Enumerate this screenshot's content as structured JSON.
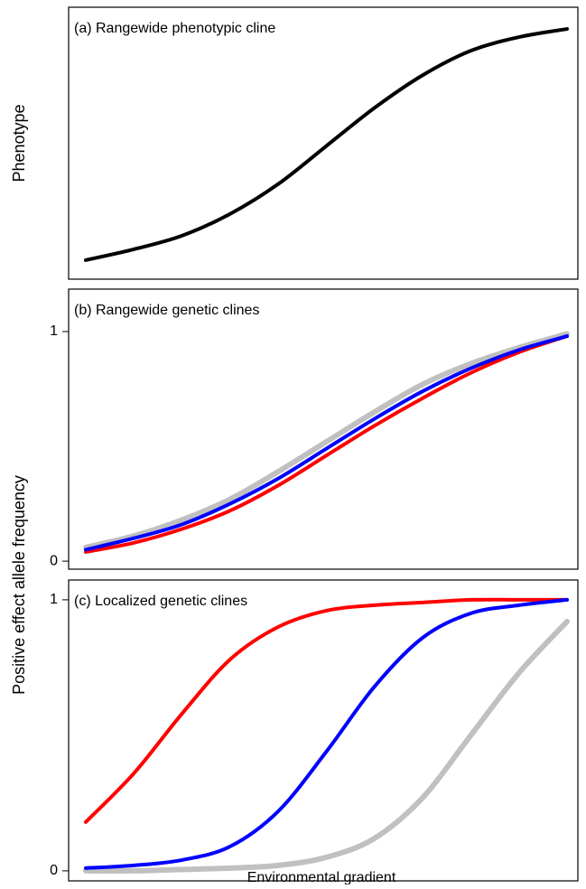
{
  "chart_data": [
    {
      "type": "line",
      "title": "(a) Rangewide phenotypic cline",
      "ylabel": "Phenotype",
      "x": [
        0,
        1,
        2,
        3,
        4,
        5,
        6,
        7,
        8,
        9,
        10
      ],
      "xlim": [
        0,
        10
      ],
      "ylim": [
        0,
        1
      ],
      "series": [
        {
          "color": "#000000",
          "values": [
            0.07,
            0.11,
            0.16,
            0.24,
            0.35,
            0.49,
            0.63,
            0.75,
            0.84,
            0.89,
            0.92
          ]
        }
      ]
    },
    {
      "type": "line",
      "title": "(b) Rangewide genetic clines",
      "ylabel": "Positive effect allele frequency",
      "x": [
        0,
        1,
        2,
        3,
        4,
        5,
        6,
        7,
        8,
        9,
        10
      ],
      "xlim": [
        0,
        10
      ],
      "ylim": [
        -0.035,
        1.185
      ],
      "yticks": [
        0,
        1
      ],
      "series": [
        {
          "color": "#c0c0c0",
          "values": [
            0.06,
            0.11,
            0.18,
            0.27,
            0.39,
            0.52,
            0.65,
            0.77,
            0.86,
            0.93,
            0.99
          ]
        },
        {
          "color": "#ff0000",
          "values": [
            0.04,
            0.08,
            0.14,
            0.22,
            0.33,
            0.46,
            0.59,
            0.71,
            0.82,
            0.91,
            0.98
          ]
        },
        {
          "color": "#0000ff",
          "values": [
            0.05,
            0.1,
            0.16,
            0.25,
            0.36,
            0.49,
            0.62,
            0.74,
            0.84,
            0.92,
            0.98
          ]
        }
      ]
    },
    {
      "type": "line",
      "title": "(c) Localized genetic clines",
      "xlabel": "Environmental gradient",
      "x": [
        0,
        1,
        2,
        3,
        4,
        5,
        6,
        7,
        8,
        9,
        10
      ],
      "xlim": [
        0,
        10
      ],
      "ylim": [
        -0.037,
        1.073
      ],
      "yticks": [
        0,
        1
      ],
      "series": [
        {
          "color": "#c0c0c0",
          "values": [
            0,
            0,
            0.005,
            0.01,
            0.02,
            0.05,
            0.12,
            0.27,
            0.5,
            0.73,
            0.92
          ]
        },
        {
          "color": "#ff0000",
          "values": [
            0.18,
            0.36,
            0.58,
            0.78,
            0.9,
            0.96,
            0.98,
            0.99,
            1,
            1,
            1
          ]
        },
        {
          "color": "#0000ff",
          "values": [
            0.01,
            0.02,
            0.04,
            0.09,
            0.22,
            0.44,
            0.68,
            0.86,
            0.95,
            0.98,
            1
          ]
        }
      ]
    }
  ]
}
